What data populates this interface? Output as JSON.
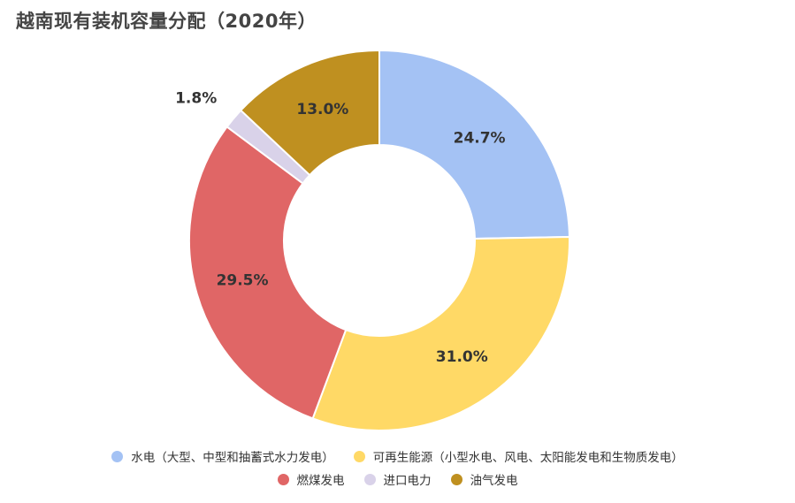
{
  "chart_data": {
    "type": "pie",
    "style": "donut",
    "title": "越南现有装机容量分配（2020年）",
    "legend_position": "bottom",
    "categories": [
      "水电（大型、中型和抽蓄式水力发电）",
      "可再生能源（小型水电、风电、太阳能发电和生物质发电）",
      "燃煤发电",
      "进口电力",
      "油气发电"
    ],
    "values": [
      24.7,
      31.0,
      29.5,
      1.8,
      13.0
    ],
    "data_labels": [
      "24.7%",
      "31.0%",
      "29.5%",
      "1.8%",
      "13.0%"
    ],
    "colors": [
      "#a4c2f4",
      "#ffd966",
      "#e06666",
      "#d9d2e9",
      "#bf9020"
    ]
  }
}
